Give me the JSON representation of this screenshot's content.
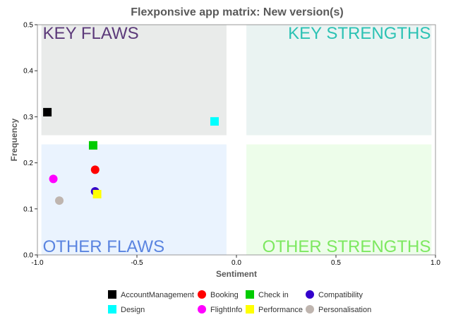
{
  "chart_data": {
    "type": "scatter",
    "title": "Flexponsive app matrix: New version(s)",
    "xlabel": "Sentiment",
    "ylabel": "Frequency",
    "xlim": [
      -1.0,
      1.0
    ],
    "ylim": [
      0.0,
      0.5
    ],
    "xticks": [
      "-1.0",
      "-0.5",
      "0.0",
      "0.5",
      "1.0"
    ],
    "yticks": [
      "0.0",
      "0.1",
      "0.2",
      "0.3",
      "0.4",
      "0.5"
    ],
    "legend_position": "bottom",
    "quadrants": [
      {
        "label": "KEY FLAWS",
        "x_range": [
          -0.98,
          -0.05
        ],
        "y_range": [
          0.26,
          0.5
        ],
        "fill": "#e9ebea",
        "text_color": "#5c3a7a"
      },
      {
        "label": "KEY STRENGTHS",
        "x_range": [
          0.05,
          0.98
        ],
        "y_range": [
          0.26,
          0.5
        ],
        "fill": "#eaf3f2",
        "text_color": "#2cc2b4"
      },
      {
        "label": "OTHER FLAWS",
        "x_range": [
          -0.98,
          -0.05
        ],
        "y_range": [
          0.0,
          0.24
        ],
        "fill": "#eaf3fe",
        "text_color": "#5a84e0"
      },
      {
        "label": "OTHER STRENGTHS",
        "x_range": [
          0.05,
          0.98
        ],
        "y_range": [
          0.0,
          0.24
        ],
        "fill": "#edfdea",
        "text_color": "#7de860"
      }
    ],
    "series": [
      {
        "name": "AccountManagement",
        "shape": "square",
        "color": "#000000",
        "x": -0.95,
        "y": 0.31
      },
      {
        "name": "Booking",
        "shape": "circle",
        "color": "#ff0000",
        "x": -0.71,
        "y": 0.185
      },
      {
        "name": "Check in",
        "shape": "square",
        "color": "#00cc00",
        "x": -0.72,
        "y": 0.238
      },
      {
        "name": "Compatibility",
        "shape": "circle",
        "color": "#3300cc",
        "x": -0.71,
        "y": 0.138
      },
      {
        "name": "Design",
        "shape": "square",
        "color": "#00ffff",
        "x": -0.11,
        "y": 0.29
      },
      {
        "name": "FlightInfo",
        "shape": "circle",
        "color": "#ff00ff",
        "x": -0.92,
        "y": 0.165
      },
      {
        "name": "Performance",
        "shape": "square",
        "color": "#ffff00",
        "x": -0.7,
        "y": 0.132
      },
      {
        "name": "Personalisation",
        "shape": "circle",
        "color": "#bfb5af",
        "x": -0.89,
        "y": 0.118
      }
    ]
  }
}
